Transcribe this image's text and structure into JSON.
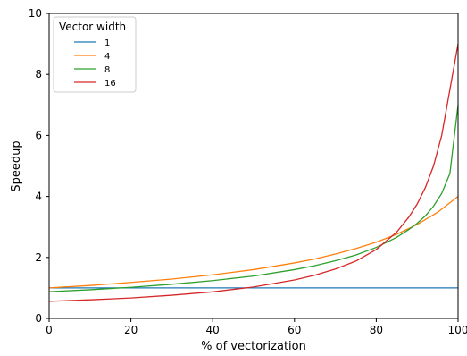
{
  "chart_data": {
    "type": "line",
    "title": "",
    "xlabel": "% of vectorization",
    "ylabel": "Speedup",
    "xlim": [
      0,
      100
    ],
    "ylim": [
      0,
      10
    ],
    "x_ticks": [
      0,
      20,
      40,
      60,
      80,
      100
    ],
    "y_ticks": [
      0,
      2,
      4,
      6,
      8,
      10
    ],
    "grid": false,
    "legend": {
      "title": "Vector width",
      "placement": "top-left"
    },
    "series": [
      {
        "name": "1",
        "color": "#1f77b4",
        "x": [
          0,
          10,
          20,
          30,
          40,
          50,
          60,
          70,
          80,
          90,
          100
        ],
        "y": [
          1.0,
          1.0,
          1.0,
          1.0,
          1.0,
          1.0,
          1.0,
          1.0,
          1.0,
          1.0,
          1.0
        ]
      },
      {
        "name": "4",
        "color": "#ff7f0e",
        "x": [
          0,
          10,
          20,
          30,
          40,
          50,
          60,
          65,
          70,
          75,
          80,
          85,
          90,
          95,
          100
        ],
        "y": [
          1.0,
          1.08,
          1.18,
          1.29,
          1.43,
          1.6,
          1.82,
          1.95,
          2.11,
          2.29,
          2.5,
          2.76,
          3.08,
          3.48,
          4.0
        ]
      },
      {
        "name": "8",
        "color": "#2ca02c",
        "x": [
          0,
          10,
          20,
          30,
          40,
          50,
          60,
          65,
          70,
          75,
          80,
          85,
          88,
          90,
          92,
          94,
          96,
          98,
          100
        ],
        "y": [
          0.875,
          0.94,
          1.02,
          1.12,
          1.24,
          1.39,
          1.6,
          1.73,
          1.89,
          2.08,
          2.33,
          2.66,
          2.92,
          3.12,
          3.36,
          3.68,
          4.1,
          4.75,
          7.0
        ]
      },
      {
        "name": "16",
        "color": "#d62728",
        "x": [
          0,
          10,
          20,
          30,
          40,
          50,
          60,
          65,
          70,
          75,
          80,
          85,
          88,
          90,
          92,
          94,
          96,
          98,
          100
        ],
        "y": [
          0.56,
          0.61,
          0.67,
          0.76,
          0.87,
          1.03,
          1.26,
          1.42,
          1.62,
          1.88,
          2.26,
          2.83,
          3.33,
          3.75,
          4.29,
          5.0,
          6.0,
          7.5,
          9.0
        ]
      }
    ]
  }
}
